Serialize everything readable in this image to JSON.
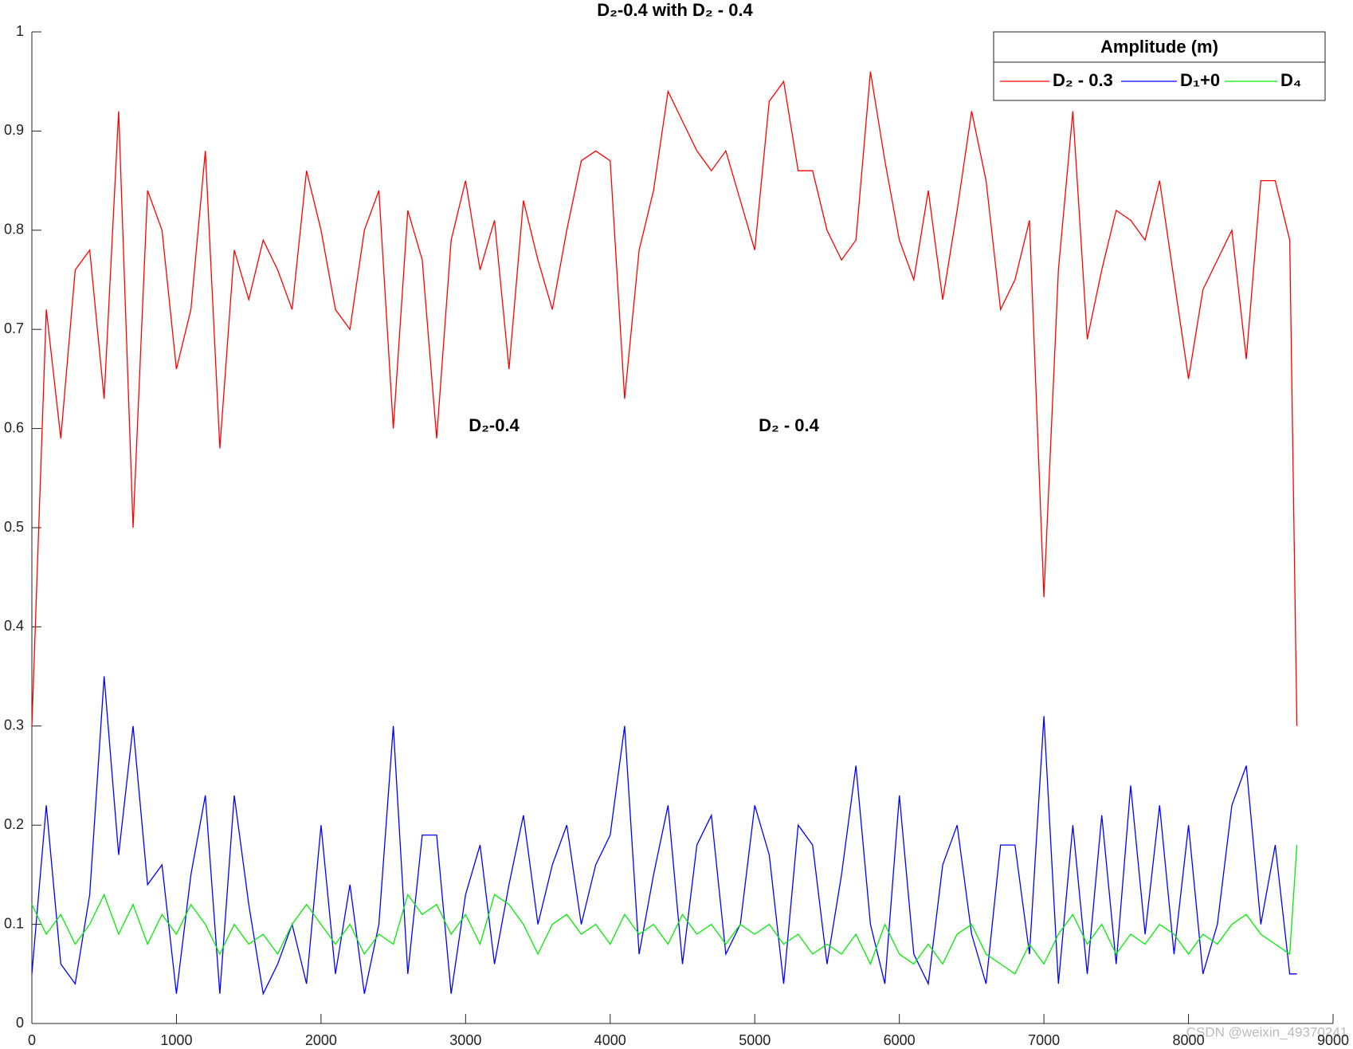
{
  "chart_data": {
    "type": "line",
    "title": "D₂-0.4 with D₂ - 0.4",
    "annotations": [
      "D₂-0.4",
      "D₂ - 0.4"
    ],
    "legend_title": "Amplitude (m)",
    "legend": "upper right",
    "watermark": "CSDN @weixin_49370241",
    "x": [
      0,
      100,
      200,
      300,
      400,
      500,
      600,
      700,
      800,
      900,
      1000,
      1100,
      1200,
      1300,
      1400,
      1500,
      1600,
      1700,
      1800,
      1900,
      2000,
      2100,
      2200,
      2300,
      2400,
      2500,
      2600,
      2700,
      2800,
      2900,
      3000,
      3100,
      3200,
      3300,
      3400,
      3500,
      3600,
      3700,
      3800,
      3900,
      4000,
      4100,
      4200,
      4300,
      4400,
      4500,
      4600,
      4700,
      4800,
      4900,
      5000,
      5100,
      5200,
      5300,
      5400,
      5500,
      5600,
      5700,
      5800,
      5900,
      6000,
      6100,
      6200,
      6300,
      6400,
      6500,
      6600,
      6700,
      6800,
      6900,
      7000,
      7100,
      7200,
      7300,
      7400,
      7500,
      7600,
      7700,
      7800,
      7900,
      8000,
      8100,
      8200,
      8300,
      8400,
      8500,
      8600,
      8700,
      8750
    ],
    "series": [
      {
        "name": "D₂ - 0.3",
        "color": "#ff0000",
        "values": [
          0.3,
          0.72,
          0.59,
          0.76,
          0.78,
          0.63,
          0.92,
          0.5,
          0.84,
          0.8,
          0.66,
          0.72,
          0.88,
          0.58,
          0.78,
          0.73,
          0.79,
          0.76,
          0.72,
          0.86,
          0.8,
          0.72,
          0.7,
          0.8,
          0.84,
          0.6,
          0.82,
          0.77,
          0.59,
          0.79,
          0.85,
          0.76,
          0.81,
          0.66,
          0.83,
          0.77,
          0.72,
          0.8,
          0.87,
          0.88,
          0.87,
          0.63,
          0.78,
          0.84,
          0.94,
          0.91,
          0.88,
          0.86,
          0.88,
          0.83,
          0.78,
          0.93,
          0.95,
          0.86,
          0.86,
          0.8,
          0.77,
          0.79,
          0.96,
          0.87,
          0.79,
          0.75,
          0.84,
          0.73,
          0.82,
          0.92,
          0.85,
          0.72,
          0.75,
          0.81,
          0.43,
          0.76,
          0.92,
          0.69,
          0.76,
          0.82,
          0.81,
          0.79,
          0.85,
          0.75,
          0.65,
          0.74,
          0.77,
          0.8,
          0.67,
          0.85,
          0.85,
          0.79,
          0.3
        ]
      },
      {
        "name": "D₁+0",
        "color": "#0000ff",
        "values": [
          0.05,
          0.22,
          0.06,
          0.04,
          0.13,
          0.35,
          0.17,
          0.3,
          0.14,
          0.16,
          0.03,
          0.15,
          0.23,
          0.03,
          0.23,
          0.12,
          0.03,
          0.06,
          0.1,
          0.04,
          0.2,
          0.05,
          0.14,
          0.03,
          0.1,
          0.3,
          0.05,
          0.19,
          0.19,
          0.03,
          0.13,
          0.18,
          0.06,
          0.14,
          0.21,
          0.1,
          0.16,
          0.2,
          0.1,
          0.16,
          0.19,
          0.3,
          0.07,
          0.15,
          0.22,
          0.06,
          0.18,
          0.21,
          0.07,
          0.1,
          0.22,
          0.17,
          0.04,
          0.2,
          0.18,
          0.06,
          0.15,
          0.26,
          0.1,
          0.04,
          0.23,
          0.07,
          0.04,
          0.16,
          0.2,
          0.09,
          0.04,
          0.18,
          0.18,
          0.07,
          0.31,
          0.04,
          0.2,
          0.05,
          0.21,
          0.06,
          0.24,
          0.09,
          0.22,
          0.07,
          0.2,
          0.05,
          0.1,
          0.22,
          0.26,
          0.1,
          0.18,
          0.05,
          0.05
        ]
      },
      {
        "name": "D₄",
        "color": "#00ee00",
        "values": [
          0.12,
          0.09,
          0.11,
          0.08,
          0.1,
          0.13,
          0.09,
          0.12,
          0.08,
          0.11,
          0.09,
          0.12,
          0.1,
          0.07,
          0.1,
          0.08,
          0.09,
          0.07,
          0.1,
          0.12,
          0.1,
          0.08,
          0.1,
          0.07,
          0.09,
          0.08,
          0.13,
          0.11,
          0.12,
          0.09,
          0.11,
          0.08,
          0.13,
          0.12,
          0.1,
          0.07,
          0.1,
          0.11,
          0.09,
          0.1,
          0.08,
          0.11,
          0.09,
          0.1,
          0.08,
          0.11,
          0.09,
          0.1,
          0.08,
          0.1,
          0.09,
          0.1,
          0.08,
          0.09,
          0.07,
          0.08,
          0.07,
          0.09,
          0.06,
          0.1,
          0.07,
          0.06,
          0.08,
          0.06,
          0.09,
          0.1,
          0.07,
          0.06,
          0.05,
          0.08,
          0.06,
          0.09,
          0.11,
          0.08,
          0.1,
          0.07,
          0.09,
          0.08,
          0.1,
          0.09,
          0.07,
          0.09,
          0.08,
          0.1,
          0.11,
          0.09,
          0.08,
          0.07,
          0.18
        ]
      }
    ],
    "xlim": [
      0,
      9000
    ],
    "xticks": [
      0,
      1000,
      2000,
      3000,
      4000,
      5000,
      6000,
      7000,
      8000,
      9000
    ],
    "ylim": [
      0,
      1
    ],
    "yticks": [
      0,
      0.1,
      0.2,
      0.3,
      0.4,
      0.5,
      0.6,
      0.7,
      0.8,
      0.9,
      1
    ]
  }
}
